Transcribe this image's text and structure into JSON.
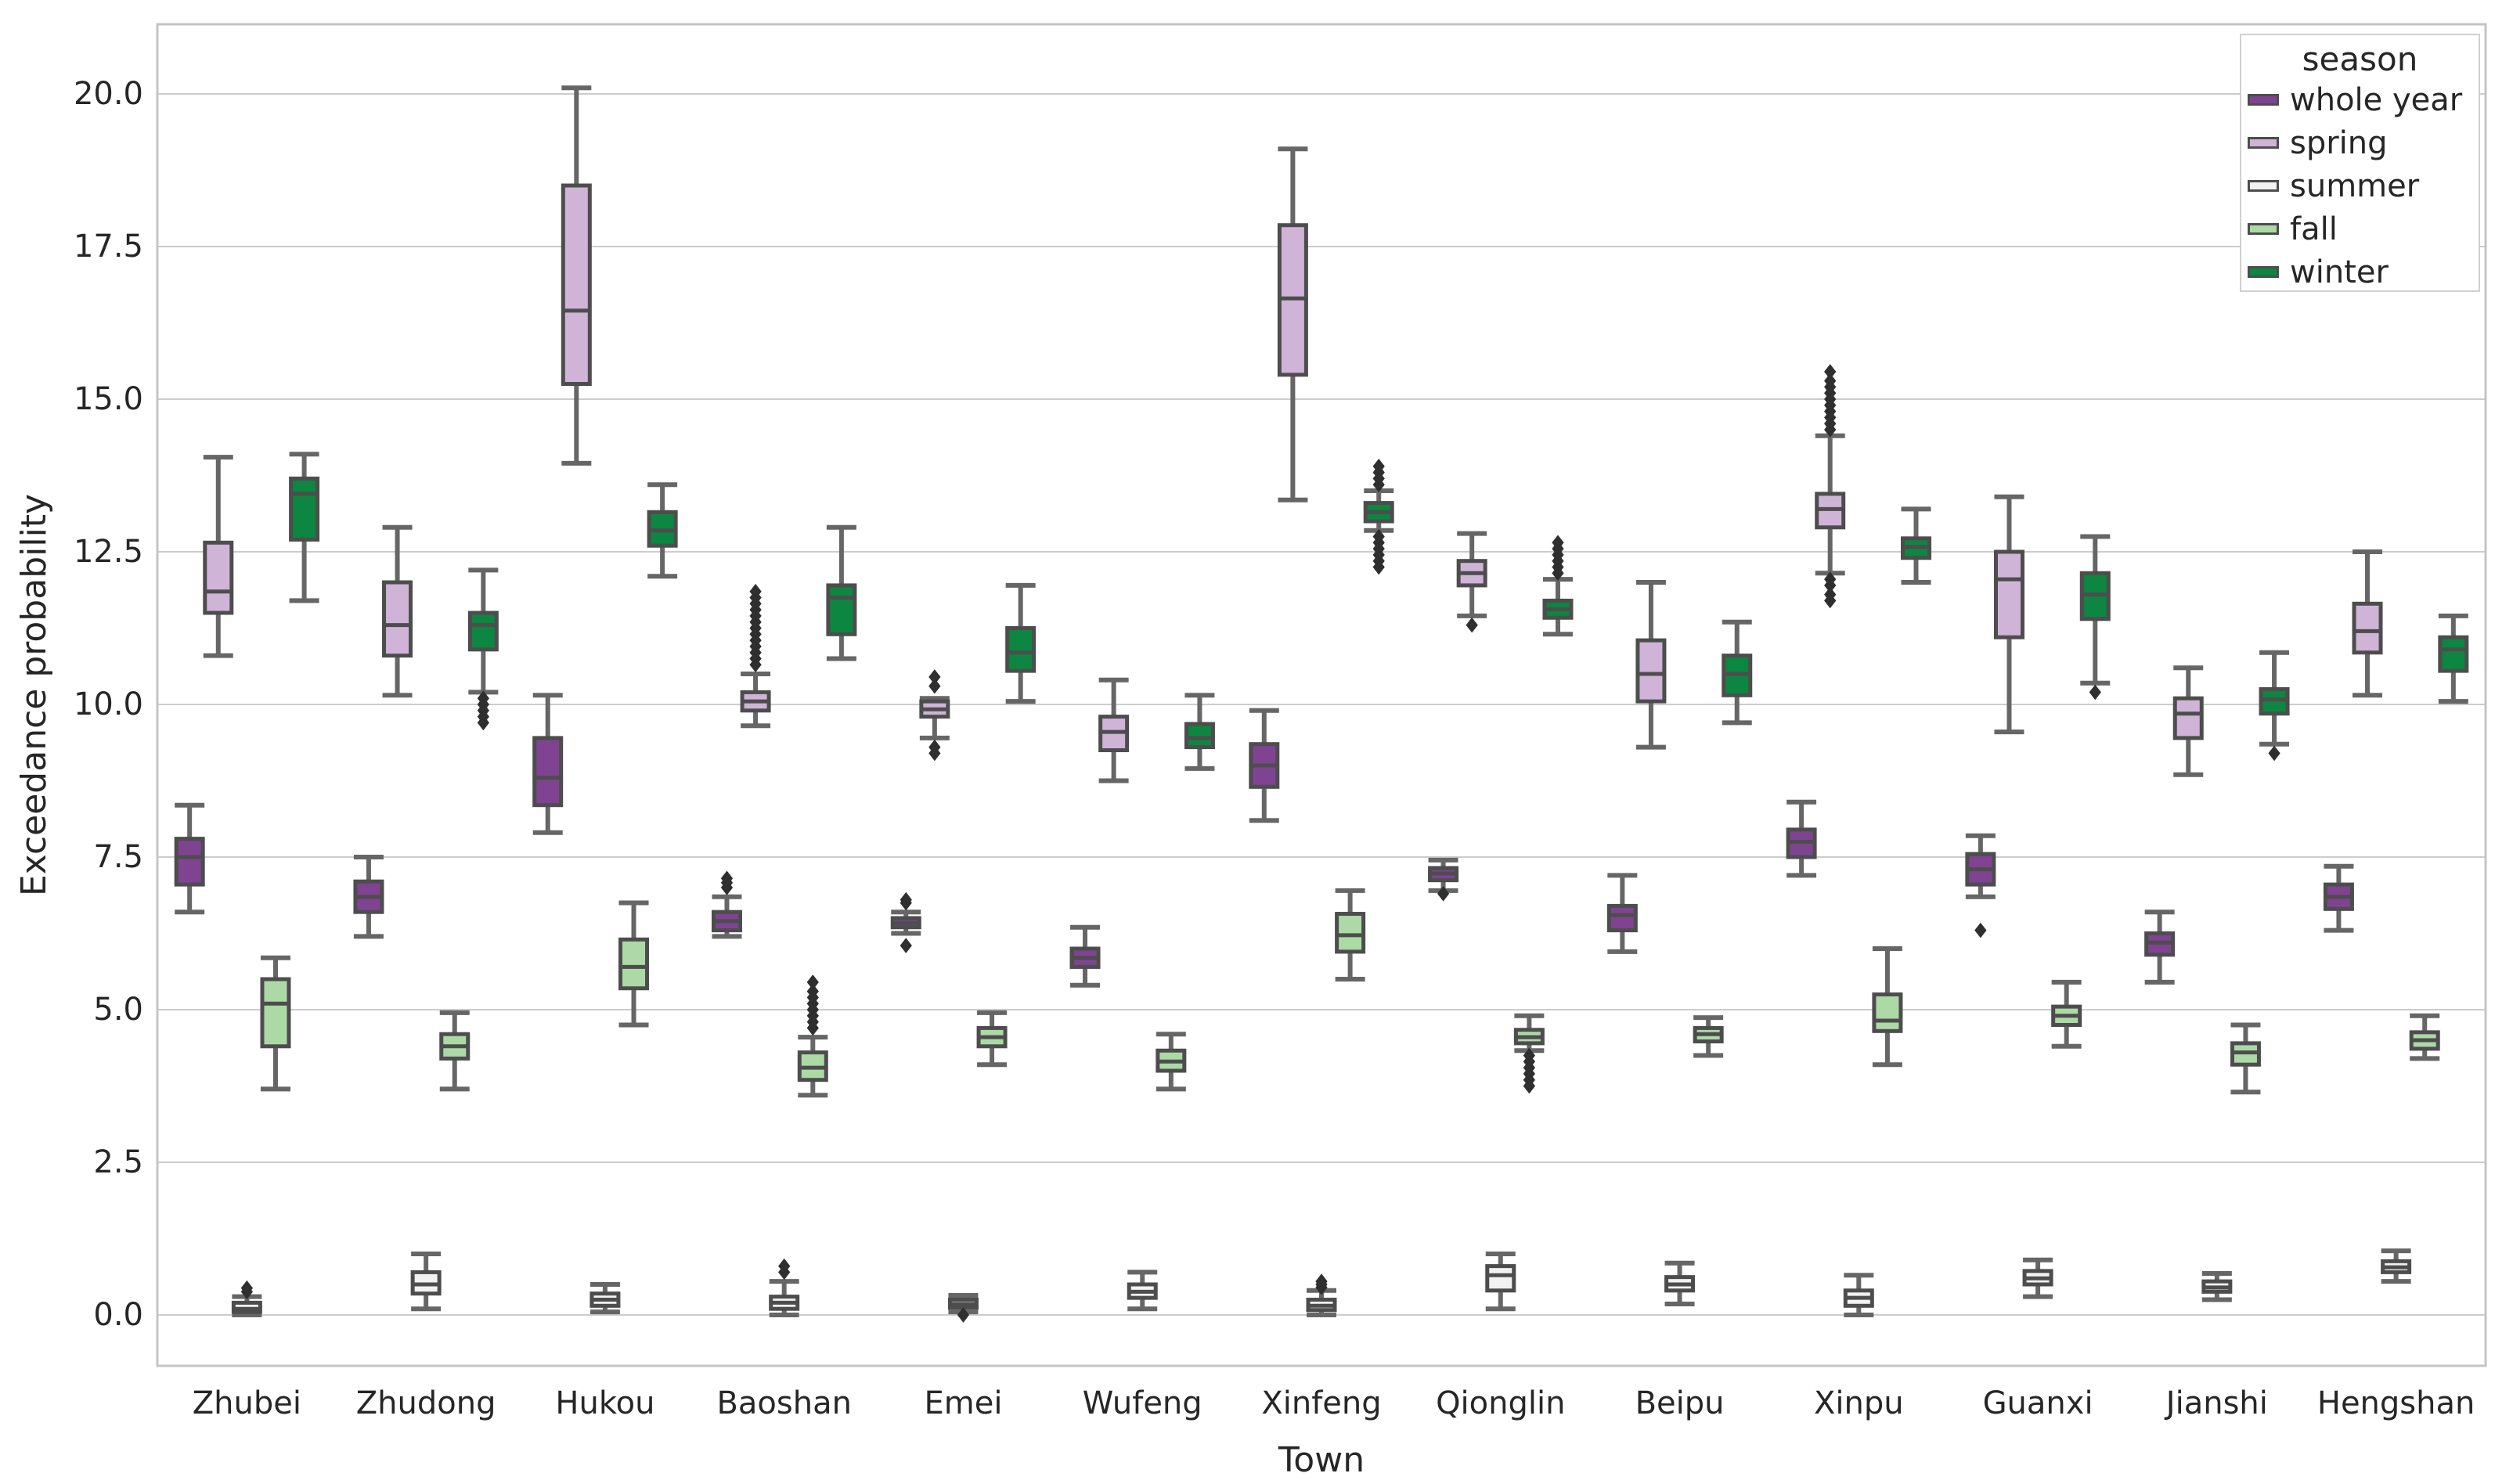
{
  "chart_data": {
    "type": "boxplot",
    "title": "",
    "xlabel": "Town",
    "ylabel": "Exceedance probability",
    "grid": "horizontal",
    "legend_position": "upper right",
    "legend_title": "season",
    "ylim": [
      -0.85,
      21.15
    ],
    "yticks": [
      0.0,
      2.5,
      5.0,
      7.5,
      10.0,
      12.5,
      15.0,
      17.5,
      20.0
    ],
    "ytick_labels": [
      "0.0",
      "2.5",
      "5.0",
      "7.5",
      "10.0",
      "12.5",
      "15.0",
      "17.5",
      "20.0"
    ],
    "categories": [
      "Zhubei",
      "Zhudong",
      "Hukou",
      "Baoshan",
      "Emei",
      "Wufeng",
      "Xinfeng",
      "Qionglin",
      "Beipu",
      "Xinpu",
      "Guanxi",
      "Jianshi",
      "Hengshan"
    ],
    "series": [
      {
        "name": "whole year",
        "color": "#7f4392",
        "boxes": [
          {
            "lo": 6.6,
            "q1": 7.05,
            "med": 7.5,
            "q3": 7.8,
            "hi": 8.35,
            "out": []
          },
          {
            "lo": 6.2,
            "q1": 6.6,
            "med": 6.85,
            "q3": 7.1,
            "hi": 7.5,
            "out": []
          },
          {
            "lo": 7.9,
            "q1": 8.35,
            "med": 8.8,
            "q3": 9.45,
            "hi": 10.15,
            "out": []
          },
          {
            "lo": 6.2,
            "q1": 6.3,
            "med": 6.45,
            "q3": 6.6,
            "hi": 6.85,
            "out": [
              7.0,
              7.08,
              7.15
            ]
          },
          {
            "lo": 6.25,
            "q1": 6.35,
            "med": 6.42,
            "q3": 6.5,
            "hi": 6.6,
            "out": [
              6.05,
              6.75,
              6.8
            ]
          },
          {
            "lo": 5.4,
            "q1": 5.7,
            "med": 5.85,
            "q3": 6.0,
            "hi": 6.35,
            "out": []
          },
          {
            "lo": 8.1,
            "q1": 8.65,
            "med": 9.0,
            "q3": 9.35,
            "hi": 9.9,
            "out": []
          },
          {
            "lo": 6.95,
            "q1": 7.12,
            "med": 7.23,
            "q3": 7.32,
            "hi": 7.45,
            "out": [
              6.9
            ]
          },
          {
            "lo": 5.95,
            "q1": 6.3,
            "med": 6.55,
            "q3": 6.7,
            "hi": 7.2,
            "out": []
          },
          {
            "lo": 7.2,
            "q1": 7.5,
            "med": 7.75,
            "q3": 7.95,
            "hi": 8.4,
            "out": []
          },
          {
            "lo": 6.85,
            "q1": 7.05,
            "med": 7.3,
            "q3": 7.55,
            "hi": 7.85,
            "out": [
              6.3
            ]
          },
          {
            "lo": 5.45,
            "q1": 5.9,
            "med": 6.1,
            "q3": 6.25,
            "hi": 6.6,
            "out": []
          },
          {
            "lo": 6.3,
            "q1": 6.65,
            "med": 6.85,
            "q3": 7.05,
            "hi": 7.35,
            "out": []
          }
        ]
      },
      {
        "name": "spring",
        "color": "#cfb4d8",
        "boxes": [
          {
            "lo": 10.8,
            "q1": 11.5,
            "med": 11.85,
            "q3": 12.65,
            "hi": 14.05,
            "out": []
          },
          {
            "lo": 10.15,
            "q1": 10.8,
            "med": 11.3,
            "q3": 12.0,
            "hi": 12.9,
            "out": []
          },
          {
            "lo": 13.95,
            "q1": 15.25,
            "med": 16.45,
            "q3": 18.5,
            "hi": 20.1,
            "out": []
          },
          {
            "lo": 9.65,
            "q1": 9.9,
            "med": 10.05,
            "q3": 10.2,
            "hi": 10.5,
            "out": [
              10.65,
              10.75,
              10.85,
              10.95,
              11.05,
              11.15,
              11.25,
              11.35,
              11.45,
              11.55,
              11.65,
              11.75,
              11.85
            ]
          },
          {
            "lo": 9.45,
            "q1": 9.8,
            "med": 9.92,
            "q3": 10.05,
            "hi": 10.1,
            "out": [
              10.3,
              10.45,
              9.3,
              9.2
            ]
          },
          {
            "lo": 8.75,
            "q1": 9.25,
            "med": 9.55,
            "q3": 9.8,
            "hi": 10.4,
            "out": []
          },
          {
            "lo": 13.35,
            "q1": 15.4,
            "med": 16.65,
            "q3": 17.85,
            "hi": 19.1,
            "out": []
          },
          {
            "lo": 11.45,
            "q1": 11.95,
            "med": 12.15,
            "q3": 12.35,
            "hi": 12.8,
            "out": [
              11.3
            ]
          },
          {
            "lo": 9.3,
            "q1": 10.05,
            "med": 10.5,
            "q3": 11.05,
            "hi": 12.0,
            "out": []
          },
          {
            "lo": 12.15,
            "q1": 12.9,
            "med": 13.2,
            "q3": 13.45,
            "hi": 14.4,
            "out": [
              14.5,
              14.6,
              14.7,
              14.8,
              14.9,
              15.0,
              15.1,
              15.2,
              15.3,
              15.45,
              11.7,
              11.8,
              11.95,
              12.05
            ]
          },
          {
            "lo": 9.55,
            "q1": 11.1,
            "med": 12.05,
            "q3": 12.5,
            "hi": 13.4,
            "out": []
          },
          {
            "lo": 8.85,
            "q1": 9.45,
            "med": 9.85,
            "q3": 10.1,
            "hi": 10.6,
            "out": []
          },
          {
            "lo": 10.15,
            "q1": 10.85,
            "med": 11.2,
            "q3": 11.65,
            "hi": 12.5,
            "out": []
          }
        ]
      },
      {
        "name": "summer",
        "color": "#f2f2f2",
        "boxes": [
          {
            "lo": 0.0,
            "q1": 0.05,
            "med": 0.1,
            "q3": 0.2,
            "hi": 0.3,
            "out": [
              0.38,
              0.44
            ]
          },
          {
            "lo": 0.1,
            "q1": 0.35,
            "med": 0.5,
            "q3": 0.7,
            "hi": 1.0,
            "out": []
          },
          {
            "lo": 0.05,
            "q1": 0.15,
            "med": 0.25,
            "q3": 0.35,
            "hi": 0.5,
            "out": []
          },
          {
            "lo": 0.0,
            "q1": 0.1,
            "med": 0.2,
            "q3": 0.3,
            "hi": 0.55,
            "out": [
              0.7,
              0.8
            ]
          },
          {
            "lo": 0.05,
            "q1": 0.12,
            "med": 0.18,
            "q3": 0.25,
            "hi": 0.32,
            "out": [
              0.0
            ]
          },
          {
            "lo": 0.1,
            "q1": 0.28,
            "med": 0.38,
            "q3": 0.5,
            "hi": 0.7,
            "out": []
          },
          {
            "lo": 0.0,
            "q1": 0.08,
            "med": 0.15,
            "q3": 0.25,
            "hi": 0.4,
            "out": [
              0.45,
              0.5,
              0.55
            ]
          },
          {
            "lo": 0.1,
            "q1": 0.4,
            "med": 0.65,
            "q3": 0.8,
            "hi": 1.0,
            "out": []
          },
          {
            "lo": 0.18,
            "q1": 0.4,
            "med": 0.5,
            "q3": 0.62,
            "hi": 0.85,
            "out": []
          },
          {
            "lo": 0.0,
            "q1": 0.15,
            "med": 0.28,
            "q3": 0.4,
            "hi": 0.65,
            "out": []
          },
          {
            "lo": 0.3,
            "q1": 0.5,
            "med": 0.6,
            "q3": 0.72,
            "hi": 0.9,
            "out": []
          },
          {
            "lo": 0.25,
            "q1": 0.38,
            "med": 0.45,
            "q3": 0.55,
            "hi": 0.68,
            "out": []
          },
          {
            "lo": 0.55,
            "q1": 0.7,
            "med": 0.78,
            "q3": 0.88,
            "hi": 1.05,
            "out": []
          }
        ]
      },
      {
        "name": "fall",
        "color": "#acd9a6",
        "boxes": [
          {
            "lo": 3.7,
            "q1": 4.4,
            "med": 5.1,
            "q3": 5.5,
            "hi": 5.85,
            "out": []
          },
          {
            "lo": 3.7,
            "q1": 4.2,
            "med": 4.4,
            "q3": 4.6,
            "hi": 4.95,
            "out": []
          },
          {
            "lo": 4.75,
            "q1": 5.35,
            "med": 5.7,
            "q3": 6.15,
            "hi": 6.75,
            "out": []
          },
          {
            "lo": 3.6,
            "q1": 3.85,
            "med": 4.05,
            "q3": 4.3,
            "hi": 4.55,
            "out": [
              4.7,
              4.8,
              4.9,
              5.0,
              5.1,
              5.2,
              5.3,
              5.45
            ]
          },
          {
            "lo": 4.1,
            "q1": 4.4,
            "med": 4.55,
            "q3": 4.7,
            "hi": 4.95,
            "out": []
          },
          {
            "lo": 3.7,
            "q1": 4.0,
            "med": 4.15,
            "q3": 4.33,
            "hi": 4.6,
            "out": []
          },
          {
            "lo": 5.5,
            "q1": 5.95,
            "med": 6.22,
            "q3": 6.57,
            "hi": 6.95,
            "out": []
          },
          {
            "lo": 4.33,
            "q1": 4.45,
            "med": 4.55,
            "q3": 4.67,
            "hi": 4.9,
            "out": [
              3.75,
              3.85,
              3.95,
              4.05,
              4.15,
              4.25
            ]
          },
          {
            "lo": 4.25,
            "q1": 4.48,
            "med": 4.6,
            "q3": 4.7,
            "hi": 4.87,
            "out": []
          },
          {
            "lo": 4.1,
            "q1": 4.65,
            "med": 4.82,
            "q3": 5.25,
            "hi": 6.0,
            "out": []
          },
          {
            "lo": 4.4,
            "q1": 4.75,
            "med": 4.9,
            "q3": 5.05,
            "hi": 5.45,
            "out": []
          },
          {
            "lo": 3.65,
            "q1": 4.1,
            "med": 4.3,
            "q3": 4.45,
            "hi": 4.75,
            "out": []
          },
          {
            "lo": 4.2,
            "q1": 4.36,
            "med": 4.5,
            "q3": 4.63,
            "hi": 4.9,
            "out": []
          }
        ]
      },
      {
        "name": "winter",
        "color": "#0c8640",
        "boxes": [
          {
            "lo": 11.7,
            "q1": 12.7,
            "med": 13.45,
            "q3": 13.7,
            "hi": 14.1,
            "out": []
          },
          {
            "lo": 10.2,
            "q1": 10.9,
            "med": 11.3,
            "q3": 11.5,
            "hi": 12.2,
            "out": [
              9.7,
              9.8,
              9.9,
              10.0,
              10.1
            ]
          },
          {
            "lo": 12.1,
            "q1": 12.6,
            "med": 12.85,
            "q3": 13.15,
            "hi": 13.6,
            "out": []
          },
          {
            "lo": 10.75,
            "q1": 11.15,
            "med": 11.75,
            "q3": 11.95,
            "hi": 12.9,
            "out": []
          },
          {
            "lo": 10.05,
            "q1": 10.55,
            "med": 10.85,
            "q3": 11.25,
            "hi": 11.95,
            "out": []
          },
          {
            "lo": 8.95,
            "q1": 9.3,
            "med": 9.45,
            "q3": 9.68,
            "hi": 10.15,
            "out": []
          },
          {
            "lo": 12.85,
            "q1": 13.0,
            "med": 13.15,
            "q3": 13.3,
            "hi": 13.5,
            "out": [
              13.6,
              13.7,
              13.8,
              13.9,
              12.25,
              12.35,
              12.45,
              12.55,
              12.65,
              12.75
            ]
          },
          {
            "lo": 11.15,
            "q1": 11.42,
            "med": 11.56,
            "q3": 11.7,
            "hi": 12.05,
            "out": [
              12.15,
              12.25,
              12.35,
              12.45,
              12.55,
              12.65
            ]
          },
          {
            "lo": 9.7,
            "q1": 10.15,
            "med": 10.5,
            "q3": 10.8,
            "hi": 11.35,
            "out": []
          },
          {
            "lo": 12.0,
            "q1": 12.4,
            "med": 12.58,
            "q3": 12.72,
            "hi": 13.2,
            "out": []
          },
          {
            "lo": 10.35,
            "q1": 11.4,
            "med": 11.8,
            "q3": 12.15,
            "hi": 12.75,
            "out": [
              10.2
            ]
          },
          {
            "lo": 9.35,
            "q1": 9.85,
            "med": 10.08,
            "q3": 10.25,
            "hi": 10.85,
            "out": [
              9.2
            ]
          },
          {
            "lo": 10.05,
            "q1": 10.55,
            "med": 10.9,
            "q3": 11.1,
            "hi": 11.45,
            "out": []
          }
        ]
      }
    ],
    "style": {
      "box_edge": "#4d4d4d",
      "whisker": "#666666",
      "median": "#4d4d4d",
      "flier": "#2f2f2f",
      "gridline": "#cccccc",
      "spine": "#c4c4c4",
      "text": "#262626",
      "background": "#ffffff"
    }
  }
}
